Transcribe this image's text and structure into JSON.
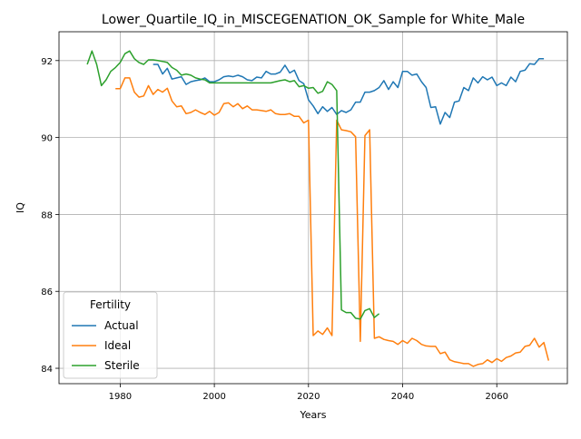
{
  "chart_data": {
    "type": "line",
    "title": "Lower_Quartile_IQ_in_MISCEGENATION_OK_Sample for White_Male",
    "xlabel": "Years",
    "ylabel": "IQ",
    "xlim": [
      1967,
      2075
    ],
    "ylim": [
      83.6,
      92.75
    ],
    "xticks": [
      1980,
      2000,
      2020,
      2040,
      2060
    ],
    "yticks": [
      84,
      86,
      88,
      90,
      92
    ],
    "grid": true,
    "legend": {
      "title": "Fertility",
      "placement": "lower-left"
    },
    "colors": {
      "Actual": "#1f77b4",
      "Ideal": "#ff7f0e",
      "Sterile": "#2ca02c"
    },
    "series": [
      {
        "name": "Actual",
        "points": [
          [
            1987,
            91.9
          ],
          [
            1988,
            91.9
          ],
          [
            1989,
            91.65
          ],
          [
            1990,
            91.8
          ],
          [
            1991,
            91.52
          ],
          [
            1992,
            91.55
          ],
          [
            1993,
            91.58
          ],
          [
            1994,
            91.38
          ],
          [
            1995,
            91.45
          ],
          [
            1996,
            91.48
          ],
          [
            1997,
            91.5
          ],
          [
            1998,
            91.55
          ],
          [
            1999,
            91.45
          ],
          [
            2000,
            91.45
          ],
          [
            2001,
            91.5
          ],
          [
            2002,
            91.58
          ],
          [
            2003,
            91.6
          ],
          [
            2004,
            91.58
          ],
          [
            2005,
            91.62
          ],
          [
            2006,
            91.58
          ],
          [
            2007,
            91.5
          ],
          [
            2008,
            91.48
          ],
          [
            2009,
            91.57
          ],
          [
            2010,
            91.55
          ],
          [
            2011,
            91.72
          ],
          [
            2012,
            91.65
          ],
          [
            2013,
            91.65
          ],
          [
            2014,
            91.7
          ],
          [
            2015,
            91.88
          ],
          [
            2016,
            91.68
          ],
          [
            2017,
            91.75
          ],
          [
            2018,
            91.48
          ],
          [
            2019,
            91.4
          ],
          [
            2020,
            90.98
          ],
          [
            2021,
            90.82
          ],
          [
            2022,
            90.62
          ],
          [
            2023,
            90.8
          ],
          [
            2024,
            90.68
          ],
          [
            2025,
            90.78
          ],
          [
            2026,
            90.6
          ],
          [
            2027,
            90.7
          ],
          [
            2028,
            90.65
          ],
          [
            2029,
            90.72
          ],
          [
            2030,
            90.92
          ],
          [
            2031,
            90.92
          ],
          [
            2032,
            91.18
          ],
          [
            2033,
            91.18
          ],
          [
            2034,
            91.22
          ],
          [
            2035,
            91.3
          ],
          [
            2036,
            91.48
          ],
          [
            2037,
            91.25
          ],
          [
            2038,
            91.45
          ],
          [
            2039,
            91.3
          ],
          [
            2040,
            91.72
          ],
          [
            2041,
            91.72
          ],
          [
            2042,
            91.62
          ],
          [
            2043,
            91.65
          ],
          [
            2044,
            91.45
          ],
          [
            2045,
            91.3
          ],
          [
            2046,
            90.78
          ],
          [
            2047,
            90.8
          ],
          [
            2048,
            90.35
          ],
          [
            2049,
            90.65
          ],
          [
            2050,
            90.52
          ],
          [
            2051,
            90.92
          ],
          [
            2052,
            90.95
          ],
          [
            2053,
            91.3
          ],
          [
            2054,
            91.22
          ],
          [
            2055,
            91.55
          ],
          [
            2056,
            91.42
          ],
          [
            2057,
            91.58
          ],
          [
            2058,
            91.5
          ],
          [
            2059,
            91.57
          ],
          [
            2060,
            91.35
          ],
          [
            2061,
            91.42
          ],
          [
            2062,
            91.35
          ],
          [
            2063,
            91.57
          ],
          [
            2064,
            91.45
          ],
          [
            2065,
            91.72
          ],
          [
            2066,
            91.75
          ],
          [
            2067,
            91.92
          ],
          [
            2068,
            91.9
          ],
          [
            2069,
            92.05
          ],
          [
            2070,
            92.05
          ]
        ]
      },
      {
        "name": "Ideal",
        "points": [
          [
            1979,
            91.27
          ],
          [
            1980,
            91.27
          ],
          [
            1981,
            91.55
          ],
          [
            1982,
            91.55
          ],
          [
            1983,
            91.18
          ],
          [
            1984,
            91.05
          ],
          [
            1985,
            91.08
          ],
          [
            1986,
            91.35
          ],
          [
            1987,
            91.12
          ],
          [
            1988,
            91.25
          ],
          [
            1989,
            91.18
          ],
          [
            1990,
            91.28
          ],
          [
            1991,
            90.95
          ],
          [
            1992,
            90.8
          ],
          [
            1993,
            90.82
          ],
          [
            1994,
            90.62
          ],
          [
            1995,
            90.65
          ],
          [
            1996,
            90.72
          ],
          [
            1997,
            90.65
          ],
          [
            1998,
            90.6
          ],
          [
            1999,
            90.68
          ],
          [
            2000,
            90.58
          ],
          [
            2001,
            90.65
          ],
          [
            2002,
            90.88
          ],
          [
            2003,
            90.9
          ],
          [
            2004,
            90.8
          ],
          [
            2005,
            90.88
          ],
          [
            2006,
            90.75
          ],
          [
            2007,
            90.82
          ],
          [
            2008,
            90.72
          ],
          [
            2009,
            90.72
          ],
          [
            2010,
            90.7
          ],
          [
            2011,
            90.68
          ],
          [
            2012,
            90.72
          ],
          [
            2013,
            90.62
          ],
          [
            2014,
            90.6
          ],
          [
            2015,
            90.6
          ],
          [
            2016,
            90.62
          ],
          [
            2017,
            90.55
          ],
          [
            2018,
            90.55
          ],
          [
            2019,
            90.38
          ],
          [
            2020,
            90.45
          ],
          [
            2021,
            84.85
          ],
          [
            2022,
            84.97
          ],
          [
            2023,
            84.88
          ],
          [
            2024,
            85.05
          ],
          [
            2025,
            84.85
          ],
          [
            2026,
            90.45
          ],
          [
            2027,
            90.2
          ],
          [
            2028,
            90.18
          ],
          [
            2029,
            90.15
          ],
          [
            2030,
            90.02
          ],
          [
            2031,
            84.7
          ],
          [
            2032,
            90.05
          ],
          [
            2033,
            90.2
          ],
          [
            2034,
            84.78
          ],
          [
            2035,
            84.82
          ],
          [
            2036,
            84.75
          ],
          [
            2037,
            84.72
          ],
          [
            2038,
            84.7
          ],
          [
            2039,
            84.62
          ],
          [
            2040,
            84.72
          ],
          [
            2041,
            84.65
          ],
          [
            2042,
            84.78
          ],
          [
            2043,
            84.72
          ],
          [
            2044,
            84.62
          ],
          [
            2045,
            84.58
          ],
          [
            2046,
            84.57
          ],
          [
            2047,
            84.57
          ],
          [
            2048,
            84.38
          ],
          [
            2049,
            84.42
          ],
          [
            2050,
            84.22
          ],
          [
            2051,
            84.17
          ],
          [
            2052,
            84.15
          ],
          [
            2053,
            84.12
          ],
          [
            2054,
            84.12
          ],
          [
            2055,
            84.05
          ],
          [
            2056,
            84.1
          ],
          [
            2057,
            84.12
          ],
          [
            2058,
            84.22
          ],
          [
            2059,
            84.15
          ],
          [
            2060,
            84.25
          ],
          [
            2061,
            84.18
          ],
          [
            2062,
            84.28
          ],
          [
            2063,
            84.32
          ],
          [
            2064,
            84.4
          ],
          [
            2065,
            84.42
          ],
          [
            2066,
            84.57
          ],
          [
            2067,
            84.6
          ],
          [
            2068,
            84.78
          ],
          [
            2069,
            84.55
          ],
          [
            2070,
            84.67
          ],
          [
            2071,
            84.2
          ]
        ]
      },
      {
        "name": "Sterile",
        "points": [
          [
            1973,
            91.9
          ],
          [
            1974,
            92.25
          ],
          [
            1975,
            91.9
          ],
          [
            1976,
            91.35
          ],
          [
            1977,
            91.5
          ],
          [
            1978,
            91.72
          ],
          [
            1979,
            91.82
          ],
          [
            1980,
            91.95
          ],
          [
            1981,
            92.18
          ],
          [
            1982,
            92.25
          ],
          [
            1983,
            92.05
          ],
          [
            1984,
            91.95
          ],
          [
            1985,
            91.9
          ],
          [
            1986,
            92.02
          ],
          [
            1987,
            92.02
          ],
          [
            1988,
            92.0
          ],
          [
            1989,
            91.98
          ],
          [
            1990,
            91.95
          ],
          [
            1991,
            91.82
          ],
          [
            1992,
            91.75
          ],
          [
            1993,
            91.62
          ],
          [
            1994,
            91.65
          ],
          [
            1995,
            91.62
          ],
          [
            1996,
            91.55
          ],
          [
            1997,
            91.52
          ],
          [
            1998,
            91.5
          ],
          [
            1999,
            91.42
          ],
          [
            2000,
            91.42
          ],
          [
            2001,
            91.42
          ],
          [
            2002,
            91.42
          ],
          [
            2003,
            91.42
          ],
          [
            2004,
            91.42
          ],
          [
            2005,
            91.42
          ],
          [
            2006,
            91.42
          ],
          [
            2007,
            91.42
          ],
          [
            2008,
            91.42
          ],
          [
            2009,
            91.42
          ],
          [
            2010,
            91.42
          ],
          [
            2011,
            91.42
          ],
          [
            2012,
            91.42
          ],
          [
            2013,
            91.45
          ],
          [
            2014,
            91.48
          ],
          [
            2015,
            91.5
          ],
          [
            2016,
            91.45
          ],
          [
            2017,
            91.48
          ],
          [
            2018,
            91.32
          ],
          [
            2019,
            91.35
          ],
          [
            2020,
            91.28
          ],
          [
            2021,
            91.3
          ],
          [
            2022,
            91.15
          ],
          [
            2023,
            91.2
          ],
          [
            2024,
            91.45
          ],
          [
            2025,
            91.38
          ],
          [
            2026,
            91.22
          ],
          [
            2027,
            85.52
          ],
          [
            2028,
            85.45
          ],
          [
            2029,
            85.45
          ],
          [
            2030,
            85.3
          ],
          [
            2031,
            85.28
          ],
          [
            2032,
            85.5
          ],
          [
            2033,
            85.55
          ],
          [
            2034,
            85.32
          ],
          [
            2035,
            85.42
          ]
        ]
      }
    ]
  }
}
